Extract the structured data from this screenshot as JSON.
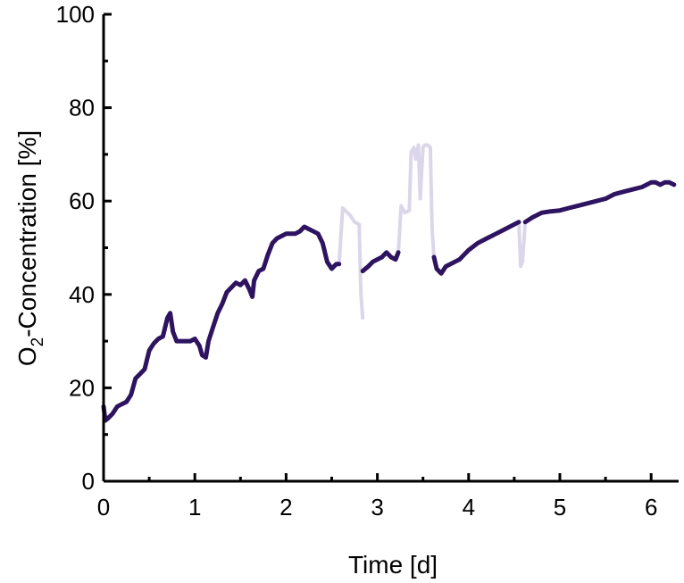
{
  "chart_data": {
    "type": "line",
    "title": "",
    "xlabel": "Time [d]",
    "ylabel_main": "O",
    "ylabel_sub": "2",
    "ylabel_rest": "-Concentration [%]",
    "xlim": [
      0,
      6.25
    ],
    "ylim": [
      0,
      100
    ],
    "xticks": [
      0,
      1,
      2,
      3,
      4,
      5,
      6
    ],
    "yticks": [
      0,
      20,
      40,
      60,
      80,
      100
    ],
    "grid": false,
    "colors": {
      "main": "#2e1460",
      "faded": "#dcd6ea"
    },
    "series": [
      {
        "style": "main",
        "x": [
          0.0,
          0.02,
          0.05,
          0.1,
          0.15,
          0.2,
          0.25,
          0.3,
          0.35,
          0.4,
          0.45,
          0.5,
          0.55,
          0.6,
          0.65,
          0.7,
          0.73,
          0.76,
          0.8,
          0.85,
          0.9,
          0.95,
          1.0,
          1.05,
          1.08,
          1.12,
          1.15,
          1.2,
          1.25,
          1.3,
          1.35,
          1.4,
          1.45,
          1.5,
          1.55,
          1.6,
          1.63,
          1.65,
          1.7,
          1.75,
          1.8,
          1.85,
          1.9,
          1.95,
          2.0,
          2.05,
          2.1,
          2.15,
          2.2,
          2.25,
          2.3,
          2.35,
          2.4,
          2.45,
          2.5,
          2.55,
          2.58
        ],
        "y": [
          16,
          13,
          13.5,
          14.5,
          16,
          16.5,
          17,
          18.5,
          22,
          23,
          24,
          28,
          29.5,
          30.5,
          31,
          35,
          36,
          32,
          30,
          30,
          30,
          30,
          30.5,
          29,
          27,
          26.5,
          30,
          33,
          36,
          38,
          40.5,
          41.5,
          42.5,
          42,
          43,
          41,
          39.5,
          43,
          45,
          45.5,
          48.5,
          51,
          52,
          52.5,
          53,
          53,
          53,
          53.5,
          54.5,
          54,
          53.5,
          53,
          51,
          47,
          45.5,
          46.5,
          46.5
        ]
      },
      {
        "style": "faded",
        "x": [
          2.58,
          2.62,
          2.7,
          2.75,
          2.8,
          2.82,
          2.84
        ],
        "y": [
          46.5,
          58.5,
          57,
          55.5,
          55,
          40,
          35
        ]
      },
      {
        "style": "main",
        "x": [
          2.84,
          2.9,
          2.95,
          3.0,
          3.05,
          3.1,
          3.15,
          3.2,
          3.23
        ],
        "y": [
          45,
          46,
          47,
          47.5,
          48,
          49,
          48,
          47.5,
          49
        ]
      },
      {
        "style": "faded",
        "x": [
          3.23,
          3.26,
          3.3,
          3.35,
          3.37,
          3.4,
          3.42,
          3.45,
          3.47,
          3.5,
          3.52,
          3.55,
          3.58,
          3.6,
          3.62
        ],
        "y": [
          49,
          59,
          57.5,
          58,
          70.5,
          71.5,
          69,
          72,
          60.5,
          71.5,
          72,
          72,
          71.5,
          54,
          48
        ]
      },
      {
        "style": "main",
        "x": [
          3.62,
          3.65,
          3.7,
          3.75,
          3.8,
          3.85,
          3.9,
          3.95,
          4.0,
          4.1,
          4.2,
          4.3,
          4.4,
          4.5,
          4.55
        ],
        "y": [
          48,
          45.5,
          44.5,
          46,
          46.5,
          47,
          47.5,
          48.5,
          49.5,
          51,
          52,
          53,
          54,
          55,
          55.5
        ]
      },
      {
        "style": "faded",
        "x": [
          4.55,
          4.57,
          4.59,
          4.62
        ],
        "y": [
          55.5,
          46,
          47,
          55.5
        ]
      },
      {
        "style": "main",
        "x": [
          4.62,
          4.7,
          4.8,
          4.9,
          5.0,
          5.1,
          5.2,
          5.3,
          5.4,
          5.5,
          5.6,
          5.7,
          5.8,
          5.9,
          6.0,
          6.05,
          6.1,
          6.15,
          6.2,
          6.25
        ],
        "y": [
          55.5,
          56.5,
          57.5,
          57.8,
          58,
          58.5,
          59,
          59.5,
          60,
          60.5,
          61.5,
          62,
          62.5,
          63,
          64,
          64,
          63.5,
          64,
          64,
          63.5
        ]
      }
    ]
  }
}
